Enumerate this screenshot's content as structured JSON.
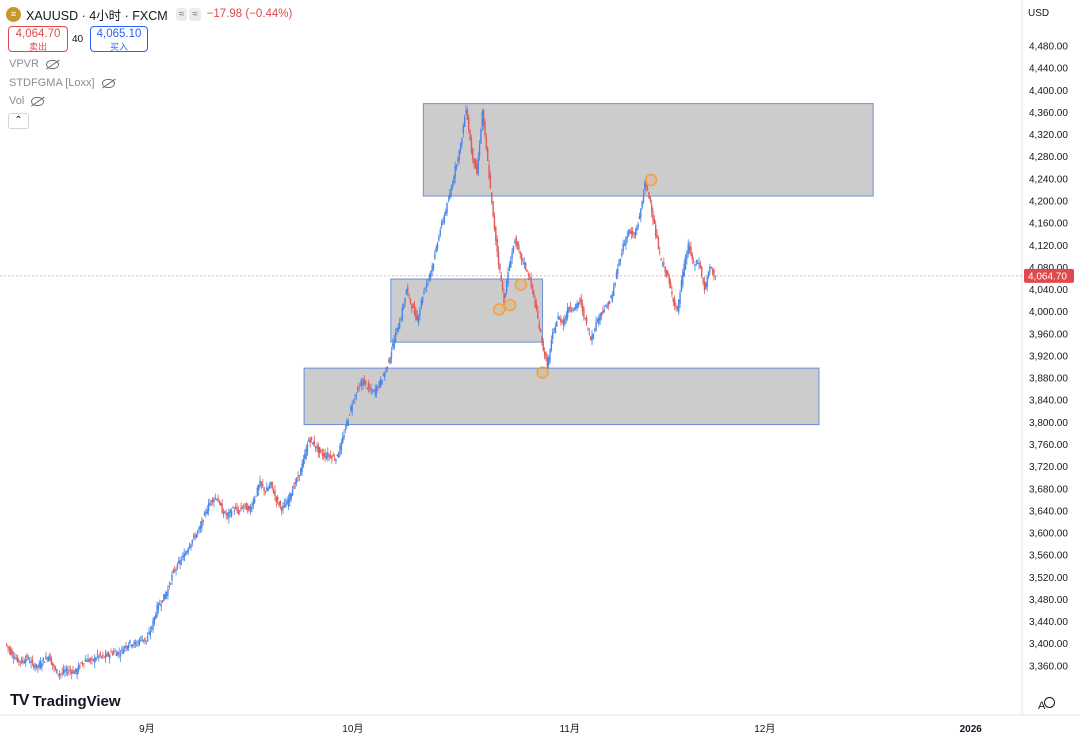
{
  "header": {
    "logo_glyph": "≡",
    "title": "XAUUSD · 4小时 · FXCM",
    "badge_1": "≈",
    "badge_2": "≈",
    "change": "−17.98 (−0.44%)"
  },
  "trade": {
    "sell_price": "4,064.70",
    "sell_label": "卖出",
    "spread": "40",
    "buy_price": "4,065.10",
    "buy_label": "买入"
  },
  "indicators": [
    "VPVR",
    "STDFGMA [Loxx]",
    "Vol"
  ],
  "collapse_glyph": "⌃",
  "currency": "USD",
  "brand": "TradingView",
  "brand_mark": "TV",
  "auto_label": "A",
  "colors": {
    "up": "#4a86e8",
    "down": "#e05a5a",
    "zone_fill": "#c9c9c9",
    "zone_stroke": "#6b8fd6",
    "marker": "#f0a040",
    "price_tag": "#e0484d"
  },
  "chart_data": {
    "type": "candlestick",
    "symbol": "XAUUSD",
    "interval": "4小时",
    "current_price": 4064.7,
    "current_price_label": "4,064.70",
    "y_range": [
      3320,
      4500
    ],
    "y_ticks": [
      {
        "v": 4480,
        "label": "4,480.00"
      },
      {
        "v": 4440,
        "label": "4,440.00"
      },
      {
        "v": 4400,
        "label": "4,400.00"
      },
      {
        "v": 4360,
        "label": "4,360.00"
      },
      {
        "v": 4320,
        "label": "4,320.00"
      },
      {
        "v": 4280,
        "label": "4,280.00"
      },
      {
        "v": 4240,
        "label": "4,240.00"
      },
      {
        "v": 4200,
        "label": "4,200.00"
      },
      {
        "v": 4160,
        "label": "4,160.00"
      },
      {
        "v": 4120,
        "label": "4,120.00"
      },
      {
        "v": 4080,
        "label": "4,080.00"
      },
      {
        "v": 4040,
        "label": "4,040.00"
      },
      {
        "v": 4000,
        "label": "4,000.00"
      },
      {
        "v": 3960,
        "label": "3,960.00"
      },
      {
        "v": 3920,
        "label": "3,920.00"
      },
      {
        "v": 3880,
        "label": "3,880.00"
      },
      {
        "v": 3840,
        "label": "3,840.00"
      },
      {
        "v": 3800,
        "label": "3,800.00"
      },
      {
        "v": 3760,
        "label": "3,760.00"
      },
      {
        "v": 3720,
        "label": "3,720.00"
      },
      {
        "v": 3680,
        "label": "3,680.00"
      },
      {
        "v": 3640,
        "label": "3,640.00"
      },
      {
        "v": 3600,
        "label": "3,600.00"
      },
      {
        "v": 3560,
        "label": "3,560.00"
      },
      {
        "v": 3520,
        "label": "3,520.00"
      },
      {
        "v": 3480,
        "label": "3,480.00"
      },
      {
        "v": 3440,
        "label": "3,440.00"
      },
      {
        "v": 3400,
        "label": "3,400.00"
      },
      {
        "v": 3360,
        "label": "3,360.00"
      }
    ],
    "x_range": [
      0,
      131
    ],
    "x_ticks": [
      {
        "t": 26,
        "label": "9月"
      },
      {
        "t": 64,
        "label": "10月"
      },
      {
        "t": 104,
        "label": "11月"
      },
      {
        "t": 140,
        "label": "12月"
      },
      {
        "t": 178,
        "label": "2026"
      }
    ],
    "price_path": [
      [
        0,
        3400
      ],
      [
        1,
        3385
      ],
      [
        2,
        3372
      ],
      [
        3,
        3368
      ],
      [
        4,
        3375
      ],
      [
        5,
        3362
      ],
      [
        6,
        3358
      ],
      [
        7,
        3370
      ],
      [
        8,
        3378
      ],
      [
        9,
        3355
      ],
      [
        10,
        3345
      ],
      [
        11,
        3350
      ],
      [
        12,
        3352
      ],
      [
        13,
        3348
      ],
      [
        14,
        3365
      ],
      [
        15,
        3372
      ],
      [
        16,
        3368
      ],
      [
        17,
        3378
      ],
      [
        18,
        3375
      ],
      [
        19,
        3380
      ],
      [
        20,
        3386
      ],
      [
        21,
        3382
      ],
      [
        22,
        3395
      ],
      [
        23,
        3402
      ],
      [
        24,
        3398
      ],
      [
        25,
        3410
      ],
      [
        26,
        3405
      ],
      [
        27,
        3430
      ],
      [
        28,
        3465
      ],
      [
        29,
        3480
      ],
      [
        30,
        3498
      ],
      [
        31,
        3530
      ],
      [
        32,
        3545
      ],
      [
        33,
        3560
      ],
      [
        34,
        3580
      ],
      [
        35,
        3595
      ],
      [
        36,
        3610
      ],
      [
        37,
        3640
      ],
      [
        38,
        3660
      ],
      [
        39,
        3665
      ],
      [
        40,
        3640
      ],
      [
        41,
        3630
      ],
      [
        42,
        3645
      ],
      [
        43,
        3638
      ],
      [
        44,
        3650
      ],
      [
        45,
        3640
      ],
      [
        46,
        3665
      ],
      [
        47,
        3690
      ],
      [
        48,
        3675
      ],
      [
        49,
        3688
      ],
      [
        50,
        3660
      ],
      [
        51,
        3645
      ],
      [
        52,
        3655
      ],
      [
        53,
        3680
      ],
      [
        54,
        3700
      ],
      [
        55,
        3730
      ],
      [
        56,
        3770
      ],
      [
        57,
        3760
      ],
      [
        58,
        3745
      ],
      [
        59,
        3740
      ],
      [
        60,
        3740
      ],
      [
        61,
        3735
      ],
      [
        62,
        3760
      ],
      [
        63,
        3800
      ],
      [
        64,
        3835
      ],
      [
        65,
        3860
      ],
      [
        66,
        3875
      ],
      [
        67,
        3860
      ],
      [
        68,
        3855
      ],
      [
        69,
        3870
      ],
      [
        70,
        3890
      ],
      [
        71,
        3920
      ],
      [
        72,
        3960
      ],
      [
        73,
        3990
      ],
      [
        74,
        4040
      ],
      [
        75,
        4010
      ],
      [
        76,
        3985
      ],
      [
        77,
        4030
      ],
      [
        78,
        4060
      ],
      [
        79,
        4090
      ],
      [
        80,
        4140
      ],
      [
        81,
        4175
      ],
      [
        82,
        4210
      ],
      [
        83,
        4260
      ],
      [
        84,
        4300
      ],
      [
        85,
        4370
      ],
      [
        86,
        4290
      ],
      [
        87,
        4250
      ],
      [
        88,
        4360
      ],
      [
        89,
        4270
      ],
      [
        90,
        4170
      ],
      [
        91,
        4090
      ],
      [
        92,
        4020
      ],
      [
        93,
        4085
      ],
      [
        94,
        4130
      ],
      [
        95,
        4100
      ],
      [
        96,
        4080
      ],
      [
        97,
        4050
      ],
      [
        98,
        4000
      ],
      [
        99,
        3945
      ],
      [
        100,
        3900
      ],
      [
        101,
        3960
      ],
      [
        102,
        3990
      ],
      [
        103,
        3980
      ],
      [
        104,
        4010
      ],
      [
        105,
        4005
      ],
      [
        106,
        4020
      ],
      [
        107,
        3985
      ],
      [
        108,
        3950
      ],
      [
        109,
        3980
      ],
      [
        110,
        4000
      ],
      [
        111,
        4010
      ],
      [
        112,
        4030
      ],
      [
        113,
        4080
      ],
      [
        114,
        4120
      ],
      [
        115,
        4145
      ],
      [
        116,
        4135
      ],
      [
        117,
        4170
      ],
      [
        118,
        4232
      ],
      [
        119,
        4200
      ],
      [
        120,
        4140
      ],
      [
        121,
        4090
      ],
      [
        122,
        4070
      ],
      [
        123,
        4030
      ],
      [
        124,
        4000
      ],
      [
        125,
        4070
      ],
      [
        126,
        4120
      ],
      [
        127,
        4085
      ],
      [
        128,
        4090
      ],
      [
        129,
        4040
      ],
      [
        130,
        4080
      ],
      [
        131,
        4064.7
      ]
    ],
    "zones": [
      {
        "x0": 77,
        "x1": 160,
        "y0": 4209,
        "y1": 4376
      },
      {
        "x0": 71,
        "x1": 99,
        "y0": 3945,
        "y1": 4059
      },
      {
        "x0": 55,
        "x1": 150,
        "y0": 3796,
        "y1": 3898
      }
    ],
    "markers": [
      {
        "t": 91,
        "v": 4004
      },
      {
        "t": 93,
        "v": 4012
      },
      {
        "t": 95,
        "v": 4049
      },
      {
        "t": 99,
        "v": 3890
      },
      {
        "t": 119,
        "v": 4238
      }
    ]
  }
}
